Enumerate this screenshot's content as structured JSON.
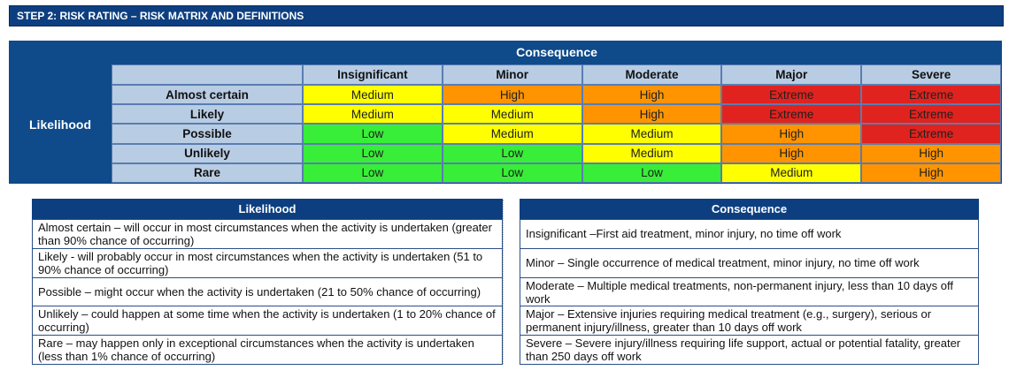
{
  "header": {
    "title": "STEP 2: RISK RATING – RISK MATRIX AND DEFINITIONS"
  },
  "matrix": {
    "top_label": "Consequence",
    "side_label": "Likelihood",
    "colors": {
      "Low": "#38ee38",
      "Medium": "#ffff00",
      "High": "#ff9400",
      "Extreme": "#e0231e"
    },
    "columns": [
      "Insignificant",
      "Minor",
      "Moderate",
      "Major",
      "Severe"
    ],
    "rows": [
      {
        "label": "Almost certain",
        "cells": [
          "Medium",
          "High",
          "High",
          "Extreme",
          "Extreme"
        ]
      },
      {
        "label": "Likely",
        "cells": [
          "Medium",
          "Medium",
          "High",
          "Extreme",
          "Extreme"
        ]
      },
      {
        "label": "Possible",
        "cells": [
          "Low",
          "Medium",
          "Medium",
          "High",
          "Extreme"
        ]
      },
      {
        "label": "Unlikely",
        "cells": [
          "Low",
          "Low",
          "Medium",
          "High",
          "High"
        ]
      },
      {
        "label": "Rare",
        "cells": [
          "Low",
          "Low",
          "Low",
          "Medium",
          "High"
        ]
      }
    ]
  },
  "definitions": {
    "likelihood": {
      "title": "Likelihood",
      "items": [
        "Almost certain – will occur in most circumstances when the activity is undertaken (greater than 90% chance of occurring)",
        "Likely - will probably occur in most circumstances when the activity is undertaken (51 to 90% chance of occurring)",
        "Possible – might occur when the activity is undertaken (21 to 50% chance of occurring)",
        "Unlikely – could happen at some time when the activity is undertaken (1 to 20% chance of occurring)",
        "Rare – may happen only in exceptional circumstances when the activity is undertaken (less than 1% chance of occurring)"
      ]
    },
    "consequence": {
      "title": "Consequence",
      "items": [
        "Insignificant –First aid treatment, minor injury, no time off work",
        "Minor – Single occurrence of medical treatment, minor injury, no time off work",
        "Moderate – Multiple medical treatments, non-permanent injury, less than 10 days off work",
        "Major – Extensive injuries requiring medical treatment (e.g., surgery), serious or permanent injury/illness, greater than 10 days off work",
        "Severe – Severe injury/illness requiring life support, actual or potential fatality, greater than 250 days off work"
      ]
    }
  }
}
